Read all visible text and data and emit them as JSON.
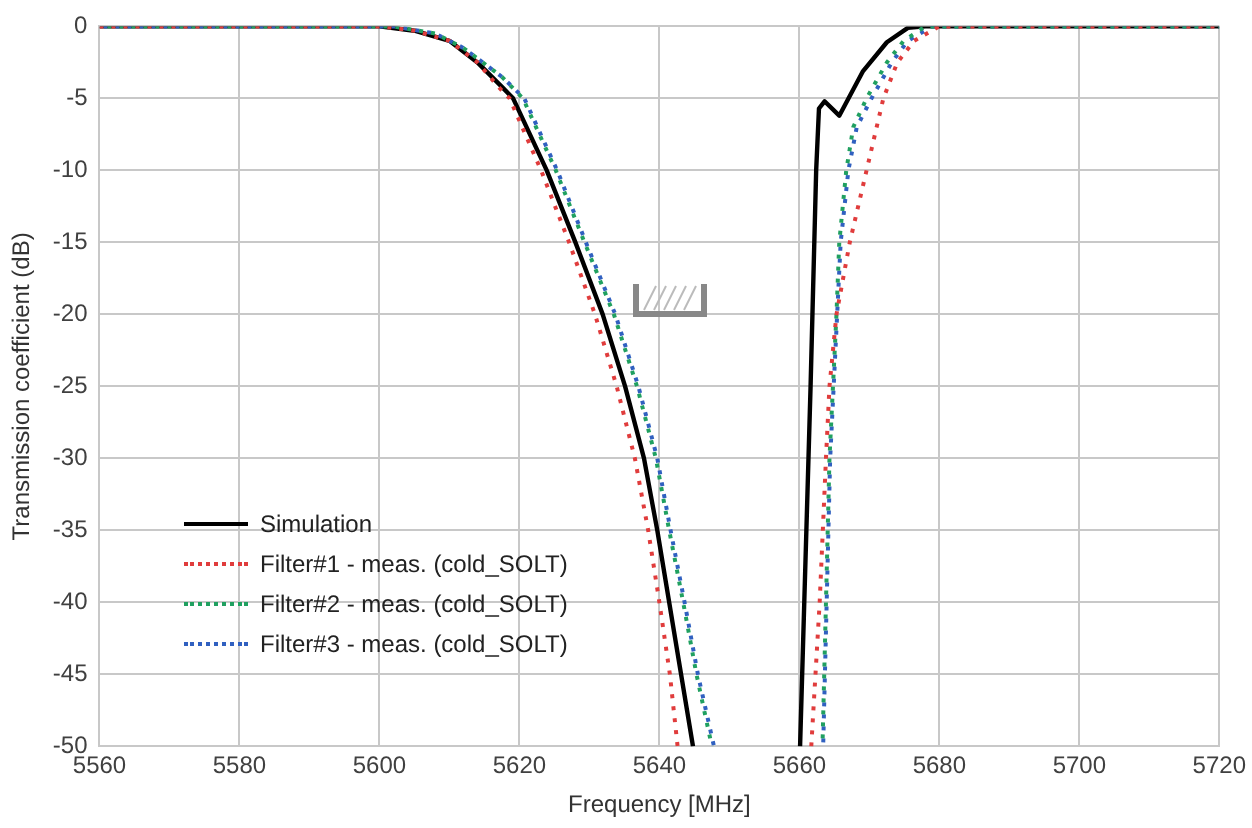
{
  "chart_data": {
    "type": "line",
    "xlabel": "Frequency [MHz]",
    "ylabel": "Transmission coefficient (dB)",
    "xlim": [
      5560,
      5720
    ],
    "xticks": [
      5560,
      5580,
      5600,
      5620,
      5640,
      5660,
      5680,
      5700,
      5720
    ],
    "ylim": [
      -50,
      0
    ],
    "yticks": [
      -50,
      -45,
      -40,
      -35,
      -30,
      -25,
      -20,
      -15,
      -10,
      -5,
      0
    ],
    "grid": true,
    "legend": "bottom left",
    "marker": "none",
    "series": [
      {
        "name": "Simulation",
        "color": "#000000",
        "line_style": "solid",
        "x": [
          5560,
          5600,
          5605,
          5610,
          5614,
          5617.5,
          5619.1,
          5623.9,
          5628,
          5631.9,
          5635.1,
          5637.8,
          5639.7,
          5641.4,
          5643.1,
          5644.8,
          null,
          5660.1,
          5660.7,
          5661.6,
          5662.4,
          5662.8,
          5663.6,
          5665.7,
          5669.1,
          5672.5,
          5675.5,
          5678,
          5720
        ],
        "values": [
          0,
          0,
          -0.3,
          -1,
          -2.5,
          -4.2,
          -5,
          -10,
          -15,
          -20,
          -25,
          -30,
          -35,
          -40,
          -45,
          -50,
          null,
          -50,
          -40,
          -25,
          -10,
          -5.7,
          -5.2,
          -6.2,
          -3.1,
          -1.1,
          -0.1,
          0,
          0
        ]
      },
      {
        "name": "Filter#1 - meas. (cold_SOLT)",
        "color": "#e03c3c",
        "line_style": "dotted",
        "x": [
          5560,
          5600,
          5605,
          5610,
          5614,
          5617,
          5618.6,
          5623.1,
          5627.1,
          5630.8,
          5633.9,
          5636.5,
          5638.4,
          5640,
          5641.5,
          5642.6,
          null,
          5661.7,
          5662.9,
          5663.8,
          5664.3,
          5665.3,
          5667.2,
          5669.6,
          5672,
          5674,
          5676.4,
          5680,
          5720
        ],
        "values": [
          0,
          0,
          -0.3,
          -1,
          -2.5,
          -4.2,
          -5,
          -10,
          -15,
          -20,
          -25,
          -30,
          -35,
          -40,
          -45,
          -50,
          null,
          -50,
          -40,
          -30,
          -25,
          -20,
          -15,
          -10,
          -5,
          -2.5,
          -1,
          0,
          0
        ]
      },
      {
        "name": "Filter#2 - meas. (cold_SOLT)",
        "color": "#20a060",
        "line_style": "dotted",
        "x": [
          5560,
          5602,
          5608,
          5612,
          5617.5,
          5620.5,
          5625.2,
          5629.3,
          5633.5,
          5636.8,
          5639.5,
          5641.4,
          5643.4,
          5645.3,
          5647.5,
          null,
          5663.3,
          5663.8,
          5664.3,
          5665.3,
          5665.7,
          5666.7,
          5667.7,
          5669.6,
          5672.5,
          5674.9,
          5678,
          5720
        ],
        "values": [
          0,
          0,
          -0.5,
          -1.5,
          -3.5,
          -5,
          -10,
          -15,
          -20,
          -25,
          -30,
          -35,
          -40,
          -45,
          -50,
          null,
          -50,
          -40,
          -30,
          -20,
          -15,
          -10,
          -7,
          -5,
          -2.5,
          -1,
          0,
          0
        ]
      },
      {
        "name": "Filter#3 - meas. (cold_SOLT)",
        "color": "#3060c0",
        "line_style": "dotted",
        "x": [
          5560,
          5602,
          5608,
          5612,
          5617.5,
          5620.7,
          5625.4,
          5629.5,
          5633.7,
          5637,
          5639.7,
          5641.6,
          5643.6,
          5645.5,
          5647.8,
          null,
          5663.4,
          5663.9,
          5664.4,
          5665.4,
          5665.9,
          5667,
          5668.2,
          5670.3,
          5673.2,
          5675.5,
          5679,
          5720
        ],
        "values": [
          0,
          0,
          -0.5,
          -1.5,
          -3.5,
          -5,
          -10,
          -15,
          -20,
          -25,
          -30,
          -35,
          -40,
          -45,
          -50,
          null,
          -50,
          -40,
          -30,
          -20,
          -15,
          -10,
          -7,
          -5,
          -2.5,
          -1,
          0,
          0
        ]
      }
    ]
  }
}
